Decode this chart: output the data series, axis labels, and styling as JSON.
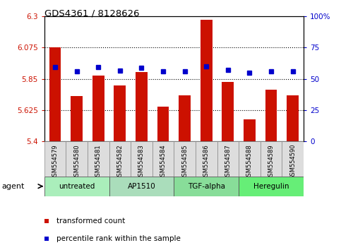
{
  "title": "GDS4361 / 8128626",
  "samples": [
    "GSM554579",
    "GSM554580",
    "GSM554581",
    "GSM554582",
    "GSM554583",
    "GSM554584",
    "GSM554585",
    "GSM554586",
    "GSM554587",
    "GSM554588",
    "GSM554589",
    "GSM554590"
  ],
  "red_values": [
    6.075,
    5.725,
    5.875,
    5.8,
    5.9,
    5.65,
    5.73,
    6.275,
    5.825,
    5.56,
    5.77,
    5.73
  ],
  "blue_values": [
    5.935,
    5.905,
    5.935,
    5.91,
    5.93,
    5.905,
    5.905,
    5.94,
    5.915,
    5.895,
    5.905,
    5.905
  ],
  "ylim_left": [
    5.4,
    6.3
  ],
  "ylim_right": [
    0,
    100
  ],
  "yticks_left": [
    5.4,
    5.625,
    5.85,
    6.075,
    6.3
  ],
  "yticks_left_labels": [
    "5.4",
    "5.625",
    "5.85",
    "6.075",
    "6.3"
  ],
  "yticks_right": [
    0,
    25,
    50,
    75,
    100
  ],
  "yticks_right_labels": [
    "0",
    "25",
    "50",
    "75",
    "100%"
  ],
  "hlines": [
    5.625,
    5.85,
    6.075
  ],
  "bar_color": "#CC1100",
  "dot_color": "#0000CC",
  "groups": [
    {
      "label": "untreated",
      "start": 0,
      "end": 3,
      "color": "#AAEEBB"
    },
    {
      "label": "AP1510",
      "start": 3,
      "end": 6,
      "color": "#AADDBB"
    },
    {
      "label": "TGF-alpha",
      "start": 6,
      "end": 9,
      "color": "#88DD99"
    },
    {
      "label": "Heregulin",
      "start": 9,
      "end": 12,
      "color": "#66EE77"
    }
  ],
  "legend_items": [
    {
      "label": "transformed count",
      "color": "#CC1100"
    },
    {
      "label": "percentile rank within the sample",
      "color": "#0000CC"
    }
  ],
  "agent_label": "agent",
  "bar_color_bg": "#DDDDDD",
  "bar_bottom": 5.4,
  "bar_width": 0.55
}
